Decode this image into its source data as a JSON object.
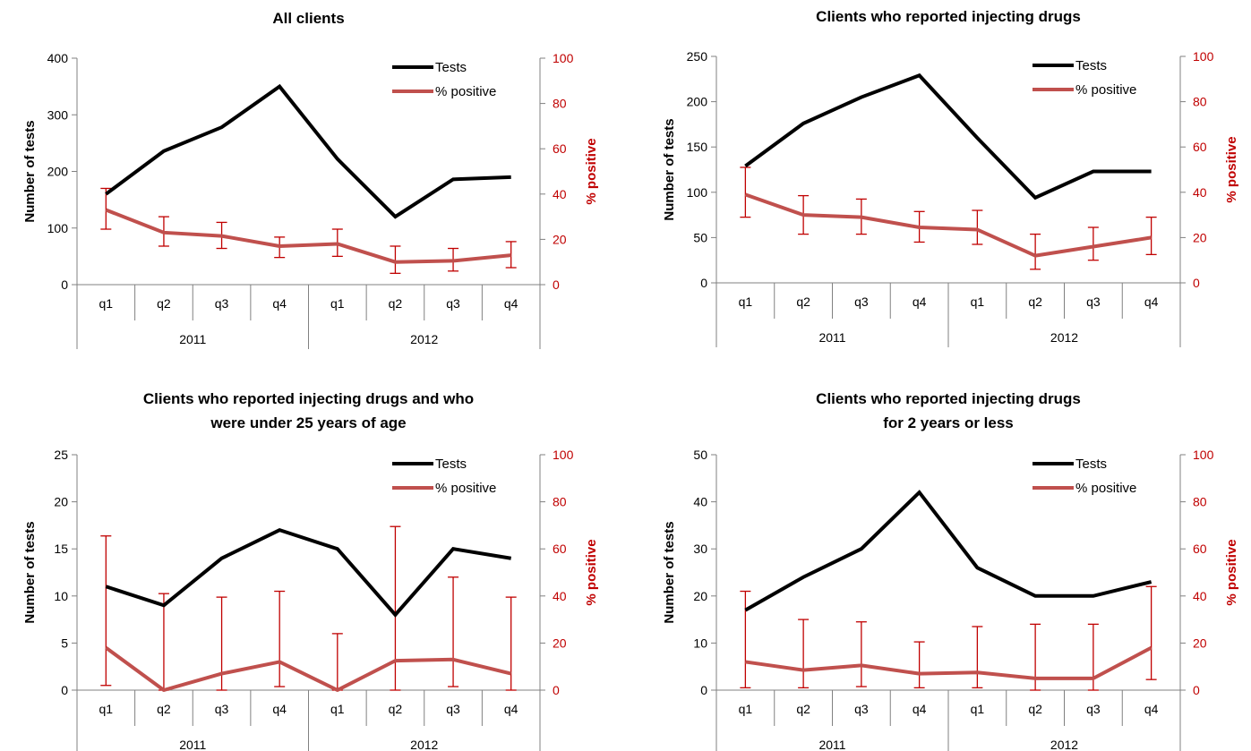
{
  "colors": {
    "tests": "#000000",
    "positive": "#c0504d",
    "axis_right": "#c00000",
    "axis": "#808080"
  },
  "chart_data": [
    {
      "type": "line",
      "title": [
        "All clients"
      ],
      "categories": [
        "q1",
        "q2",
        "q3",
        "q4",
        "q1",
        "q2",
        "q3",
        "q4"
      ],
      "groups": [
        {
          "label": "2011",
          "span": 4
        },
        {
          "label": "2012",
          "span": 4
        }
      ],
      "ylabel": "Number of tests",
      "y2label": "% positive",
      "ylim": [
        0,
        400
      ],
      "yticks": [
        0,
        100,
        200,
        300,
        400
      ],
      "y2lim": [
        0,
        100
      ],
      "y2ticks": [
        0,
        20,
        40,
        60,
        80,
        100
      ],
      "legend": [
        "Tests",
        "% positive"
      ],
      "legend_position": "top-right",
      "series": [
        {
          "name": "Tests",
          "axis": "left",
          "values": [
            160,
            236,
            278,
            350,
            222,
            120,
            186,
            190
          ]
        },
        {
          "name": "% positive",
          "axis": "right",
          "values": [
            33,
            23,
            21.5,
            17,
            18,
            10,
            10.5,
            13
          ],
          "err_low": [
            24.5,
            17,
            16,
            12,
            12.5,
            5,
            6,
            7.5
          ],
          "err_high": [
            42.5,
            30,
            27.5,
            21,
            24.5,
            17,
            16,
            19
          ]
        }
      ]
    },
    {
      "type": "line",
      "title": [
        "Clients who reported injecting drugs"
      ],
      "categories": [
        "q1",
        "q2",
        "q3",
        "q4",
        "q1",
        "q2",
        "q3",
        "q4"
      ],
      "groups": [
        {
          "label": "2011",
          "span": 4
        },
        {
          "label": "2012",
          "span": 4
        }
      ],
      "ylabel": "Number of tests",
      "y2label": "% positive",
      "ylim": [
        0,
        250
      ],
      "yticks": [
        0,
        50,
        100,
        150,
        200,
        250
      ],
      "y2lim": [
        0,
        100
      ],
      "y2ticks": [
        0,
        20,
        40,
        60,
        80,
        100
      ],
      "legend": [
        "Tests",
        "% positive"
      ],
      "legend_position": "top-right",
      "series": [
        {
          "name": "Tests",
          "axis": "left",
          "values": [
            129,
            176,
            205,
            229,
            160,
            94,
            123,
            123
          ]
        },
        {
          "name": "% positive",
          "axis": "right",
          "values": [
            39,
            30,
            29,
            24.5,
            23.5,
            12,
            16,
            20
          ],
          "err_low": [
            29,
            21.5,
            21.5,
            18,
            17,
            6,
            10,
            12.5
          ],
          "err_high": [
            51,
            38.5,
            37,
            31.5,
            32,
            21.5,
            24.5,
            29
          ]
        }
      ]
    },
    {
      "type": "line",
      "title": [
        "Clients who reported injecting drugs and who",
        "were under 25 years of age"
      ],
      "categories": [
        "q1",
        "q2",
        "q3",
        "q4",
        "q1",
        "q2",
        "q3",
        "q4"
      ],
      "groups": [
        {
          "label": "2011",
          "span": 4
        },
        {
          "label": "2012",
          "span": 4
        }
      ],
      "ylabel": "Number of tests",
      "y2label": "% positive",
      "ylim": [
        0,
        25
      ],
      "yticks": [
        0,
        5,
        10,
        15,
        20,
        25
      ],
      "y2lim": [
        0,
        100
      ],
      "y2ticks": [
        0,
        20,
        40,
        60,
        80,
        100
      ],
      "legend": [
        "Tests",
        "% positive"
      ],
      "legend_position": "top-right",
      "series": [
        {
          "name": "Tests",
          "axis": "left",
          "values": [
            11,
            9,
            14,
            17,
            15,
            8,
            15,
            14
          ]
        },
        {
          "name": "% positive",
          "axis": "right",
          "values": [
            18,
            0,
            7,
            12,
            0,
            12.5,
            13,
            7
          ],
          "err_low": [
            2,
            0,
            0,
            1.5,
            0,
            0,
            1.5,
            0
          ],
          "err_high": [
            65.5,
            41,
            39.5,
            42,
            24,
            69.5,
            48,
            39.5
          ]
        }
      ]
    },
    {
      "type": "line",
      "title": [
        "Clients who reported injecting drugs",
        "for 2 years or less"
      ],
      "categories": [
        "q1",
        "q2",
        "q3",
        "q4",
        "q1",
        "q2",
        "q3",
        "q4"
      ],
      "groups": [
        {
          "label": "2011",
          "span": 4
        },
        {
          "label": "2012",
          "span": 4
        }
      ],
      "ylabel": "Number of tests",
      "y2label": "% positive",
      "ylim": [
        0,
        50
      ],
      "yticks": [
        0,
        10,
        20,
        30,
        40,
        50
      ],
      "y2lim": [
        0,
        100
      ],
      "y2ticks": [
        0,
        20,
        40,
        60,
        80,
        100
      ],
      "legend": [
        "Tests",
        "% positive"
      ],
      "legend_position": "top-right",
      "series": [
        {
          "name": "Tests",
          "axis": "left",
          "values": [
            17,
            24,
            30,
            42,
            26,
            20,
            20,
            23
          ]
        },
        {
          "name": "% positive",
          "axis": "right",
          "values": [
            12,
            8.5,
            10.5,
            7,
            7.5,
            5,
            5,
            18
          ],
          "err_low": [
            1,
            1,
            1.5,
            1,
            1,
            0,
            0,
            4.5
          ],
          "err_high": [
            42,
            30,
            29,
            20.5,
            27,
            28,
            28,
            44
          ]
        }
      ]
    }
  ]
}
